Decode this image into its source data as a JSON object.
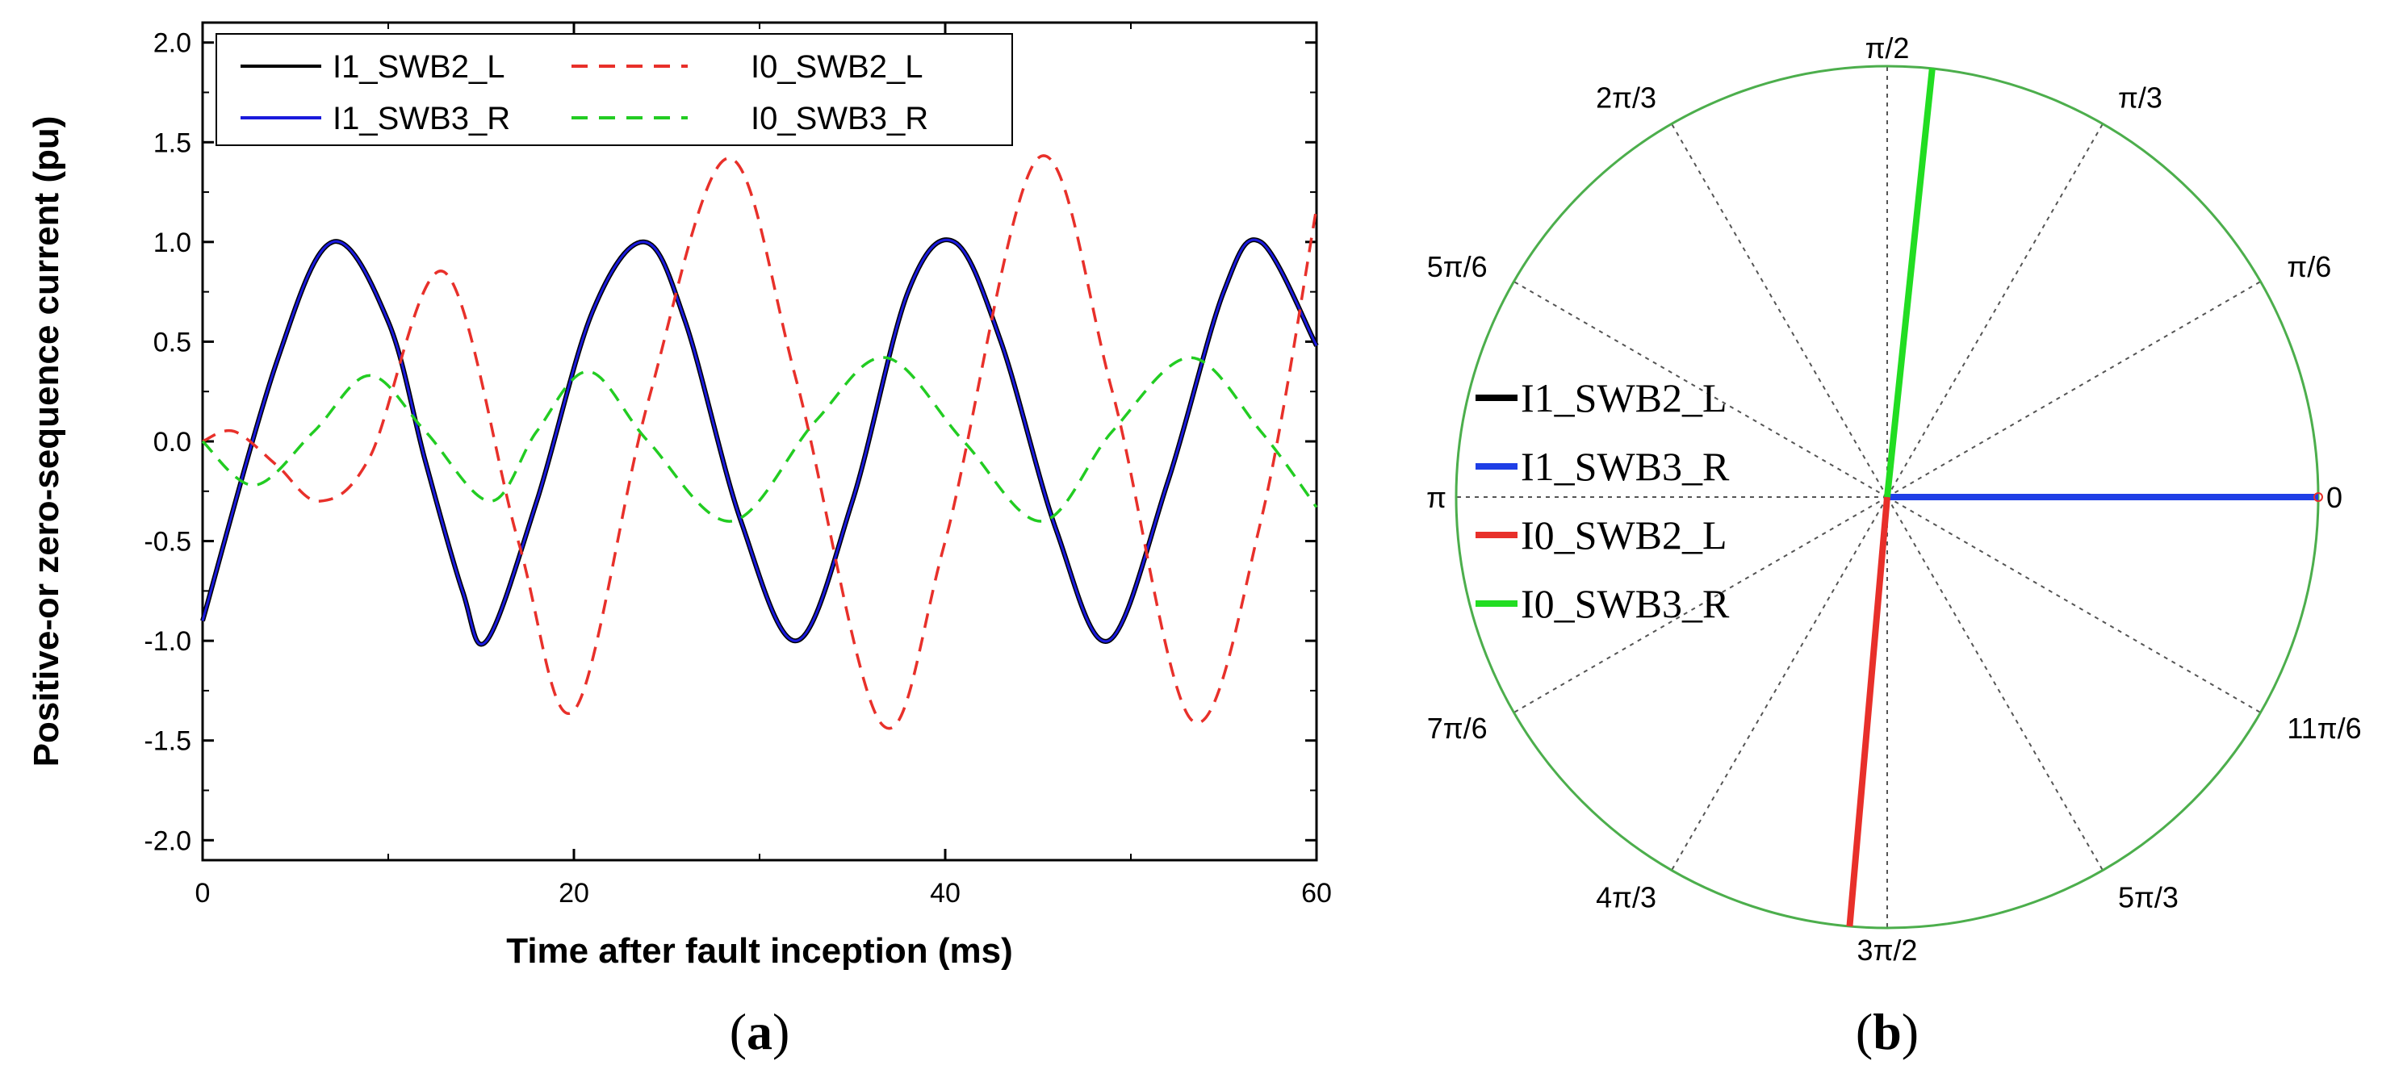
{
  "chart_data": [
    {
      "type": "line",
      "panel_label": "a",
      "xlabel": "Time after fault inception (ms)",
      "ylabel": "Positive-or zero-sequence current (pu)",
      "xlim": [
        0,
        60
      ],
      "ylim": [
        -2.1,
        2.1
      ],
      "x_ticks": [
        "0",
        "20",
        "40",
        "60"
      ],
      "y_ticks": [
        "2.0",
        "1.5",
        "1.0",
        "0.5",
        "0.0",
        "-0.5",
        "-1.0",
        "-1.5",
        "-2.0"
      ],
      "legend_position": "top",
      "series": [
        {
          "name": "I1_SWB2_L",
          "color": "#000000",
          "dash": "solid",
          "x": [
            0,
            4,
            7,
            10,
            12,
            14,
            15.3,
            18,
            21,
            23.8,
            26,
            29,
            32,
            35,
            38,
            40.5,
            43,
            46,
            48.8,
            52,
            55,
            57,
            60
          ],
          "y": [
            -0.9,
            0.4,
            1.0,
            0.6,
            -0.1,
            -0.75,
            -1.0,
            -0.3,
            0.65,
            1.0,
            0.6,
            -0.4,
            -1.0,
            -0.3,
            0.75,
            1.0,
            0.5,
            -0.45,
            -1.0,
            -0.2,
            0.75,
            1.0,
            0.48
          ]
        },
        {
          "name": "I1_SWB3_R",
          "color": "#1a1adc",
          "dash": "solid",
          "x": [
            0,
            4,
            7,
            10,
            12,
            14,
            15.3,
            18,
            21,
            23.8,
            26,
            29,
            32,
            35,
            38,
            40.5,
            43,
            46,
            48.8,
            52,
            55,
            57,
            60
          ],
          "y": [
            -0.9,
            0.4,
            1.0,
            0.6,
            -0.1,
            -0.75,
            -1.0,
            -0.3,
            0.65,
            1.0,
            0.6,
            -0.4,
            -1.0,
            -0.3,
            0.75,
            1.0,
            0.5,
            -0.45,
            -1.0,
            -0.2,
            0.75,
            1.0,
            0.48
          ]
        },
        {
          "name": "I0_SWB2_L",
          "color": "#e8302a",
          "dash": "dashed",
          "x": [
            0,
            1.7,
            4,
            6.3,
            9,
            13,
            17,
            20,
            24,
            28.3,
            32,
            36.6,
            40,
            45,
            49,
            53.3,
            57,
            60
          ],
          "y": [
            0.0,
            0.05,
            -0.12,
            -0.3,
            -0.08,
            0.85,
            -0.5,
            -1.35,
            0.2,
            1.42,
            0.3,
            -1.42,
            -0.5,
            1.42,
            0.25,
            -1.4,
            -0.4,
            1.17
          ]
        },
        {
          "name": "I0_SWB3_R",
          "color": "#22cc22",
          "dash": "dashed",
          "x": [
            0,
            2.8,
            6,
            9,
            12,
            15.5,
            18,
            20.8,
            24,
            28.5,
            33,
            36.8,
            41,
            45.2,
            49,
            53.2,
            57,
            60
          ],
          "y": [
            0.0,
            -0.22,
            0.05,
            0.33,
            0.05,
            -0.3,
            0.05,
            0.35,
            0.0,
            -0.4,
            0.1,
            0.42,
            0.0,
            -0.4,
            0.05,
            0.42,
            0.05,
            -0.33
          ]
        }
      ]
    },
    {
      "type": "polar",
      "panel_label": "b",
      "angle_labels": [
        "0",
        "π/6",
        "π/3",
        "π/2",
        "2π/3",
        "5π/6",
        "π",
        "7π/6",
        "4π/3",
        "3π/2",
        "5π/3",
        "11π/6"
      ],
      "angles_deg": [
        0,
        30,
        60,
        90,
        120,
        150,
        180,
        210,
        240,
        270,
        300,
        330
      ],
      "legend_position": "left",
      "series": [
        {
          "name": "I1_SWB2_L",
          "color": "#000000",
          "angle_deg": 0,
          "magnitude": 1.0
        },
        {
          "name": "I1_SWB3_R",
          "color": "#1f3fe6",
          "angle_deg": 0,
          "magnitude": 1.0
        },
        {
          "name": "I0_SWB2_L",
          "color": "#e8302a",
          "angle_deg": 265,
          "magnitude": 1.0
        },
        {
          "name": "I0_SWB3_R",
          "color": "#22dd22",
          "angle_deg": 84,
          "magnitude": 1.0
        }
      ]
    }
  ],
  "captions": {
    "a": "a",
    "b": "b"
  }
}
